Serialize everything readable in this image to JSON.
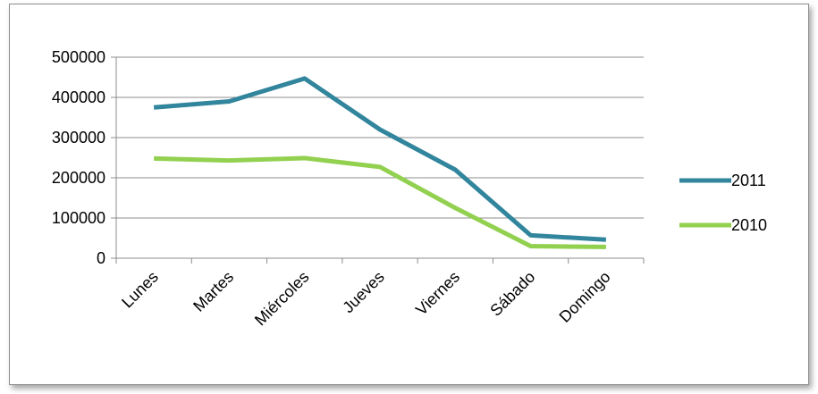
{
  "chart_data": {
    "type": "line",
    "title": "",
    "xlabel": "",
    "ylabel": "",
    "categories": [
      "Lunes",
      "Martes",
      "Miércoles",
      "Jueves",
      "Viernes",
      "Sábado",
      "Domingo"
    ],
    "ylim": [
      0,
      500000
    ],
    "yticks": [
      "0",
      "100000",
      "200000",
      "300000",
      "400000",
      "500000"
    ],
    "grid": true,
    "legend_position": "right",
    "series": [
      {
        "name": "2011",
        "color": "#31859c",
        "values": [
          375000,
          390000,
          447000,
          320000,
          220000,
          57000,
          46000
        ]
      },
      {
        "name": "2010",
        "color": "#92d050",
        "values": [
          248000,
          243000,
          249000,
          227000,
          125000,
          30000,
          28000
        ]
      }
    ]
  }
}
